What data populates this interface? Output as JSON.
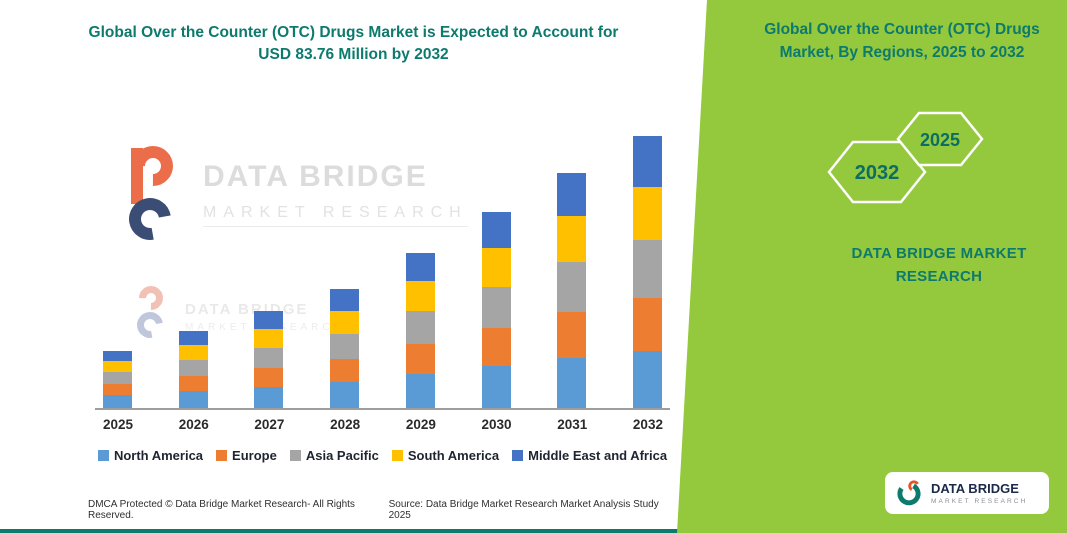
{
  "left": {
    "title": "Global Over the Counter (OTC) Drugs Market is Expected to Account for USD 83.76 Million by 2032",
    "watermark": {
      "line1": "DATA BRIDGE",
      "line2": "MARKET RESEARCH",
      "small_line1": "DATA BRIDGE",
      "small_line2": "MARKET RESEARCH"
    },
    "footer_dmca": "DMCA Protected © Data Bridge Market Research-  All Rights Reserved.",
    "footer_source": "Source: Data Bridge Market Research  Market Analysis Study 2025"
  },
  "right": {
    "title": "Global Over the Counter (OTC) Drugs Market, By Regions, 2025 to 2032",
    "hex_back_label": "2032",
    "hex_front_label": "2025",
    "brand_text": "DATA BRIDGE MARKET RESEARCH",
    "logo_name": "DATA BRIDGE",
    "logo_sub": "MARKET RESEARCH",
    "colors": {
      "panel_green": "#94c83d",
      "teal": "#0d7a6e"
    }
  },
  "chart_data": {
    "type": "bar",
    "stacked": true,
    "title": "Global Over the Counter (OTC) Drugs Market, By Regions, 2025 to 2032",
    "xlabel": "",
    "ylabel": "",
    "value_axis_visible": false,
    "legend_position": "bottom",
    "categories": [
      "2025",
      "2026",
      "2027",
      "2028",
      "2029",
      "2030",
      "2031",
      "2032"
    ],
    "series": [
      {
        "name": "North America",
        "color": "#5B9BD5",
        "values": [
          13,
          17,
          21,
          26,
          34,
          42,
          50,
          57
        ]
      },
      {
        "name": "Europe",
        "color": "#ED7D31",
        "values": [
          11,
          15,
          19,
          23,
          30,
          38,
          46,
          53
        ]
      },
      {
        "name": "Asia Pacific",
        "color": "#A5A5A5",
        "values": [
          12,
          16,
          20,
          25,
          33,
          41,
          49,
          57
        ]
      },
      {
        "name": "South America",
        "color": "#FFC000",
        "values": [
          11,
          15,
          19,
          23,
          30,
          38,
          46,
          53
        ]
      },
      {
        "name": "Middle East and Africa",
        "color": "#4472C4",
        "values": [
          10,
          14,
          18,
          22,
          28,
          36,
          43,
          51
        ]
      }
    ]
  }
}
